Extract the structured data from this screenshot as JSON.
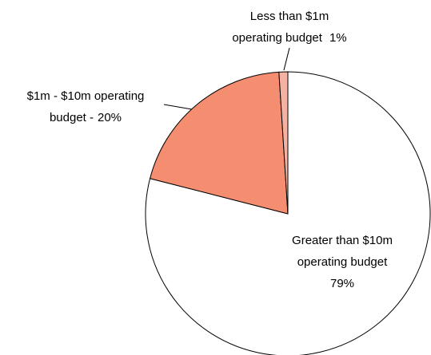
{
  "chart_data": {
    "type": "pie",
    "categories": [
      "Greater than $10m\noperating budget",
      "$1m - $10m operating\nbudget -",
      "Less than $1m\noperating budget"
    ],
    "values": [
      79,
      20,
      1
    ],
    "value_labels": [
      "79%",
      "20%",
      "1%"
    ],
    "colors": [
      "#ffffff",
      "#f58e70",
      "#f4b3a2"
    ]
  }
}
